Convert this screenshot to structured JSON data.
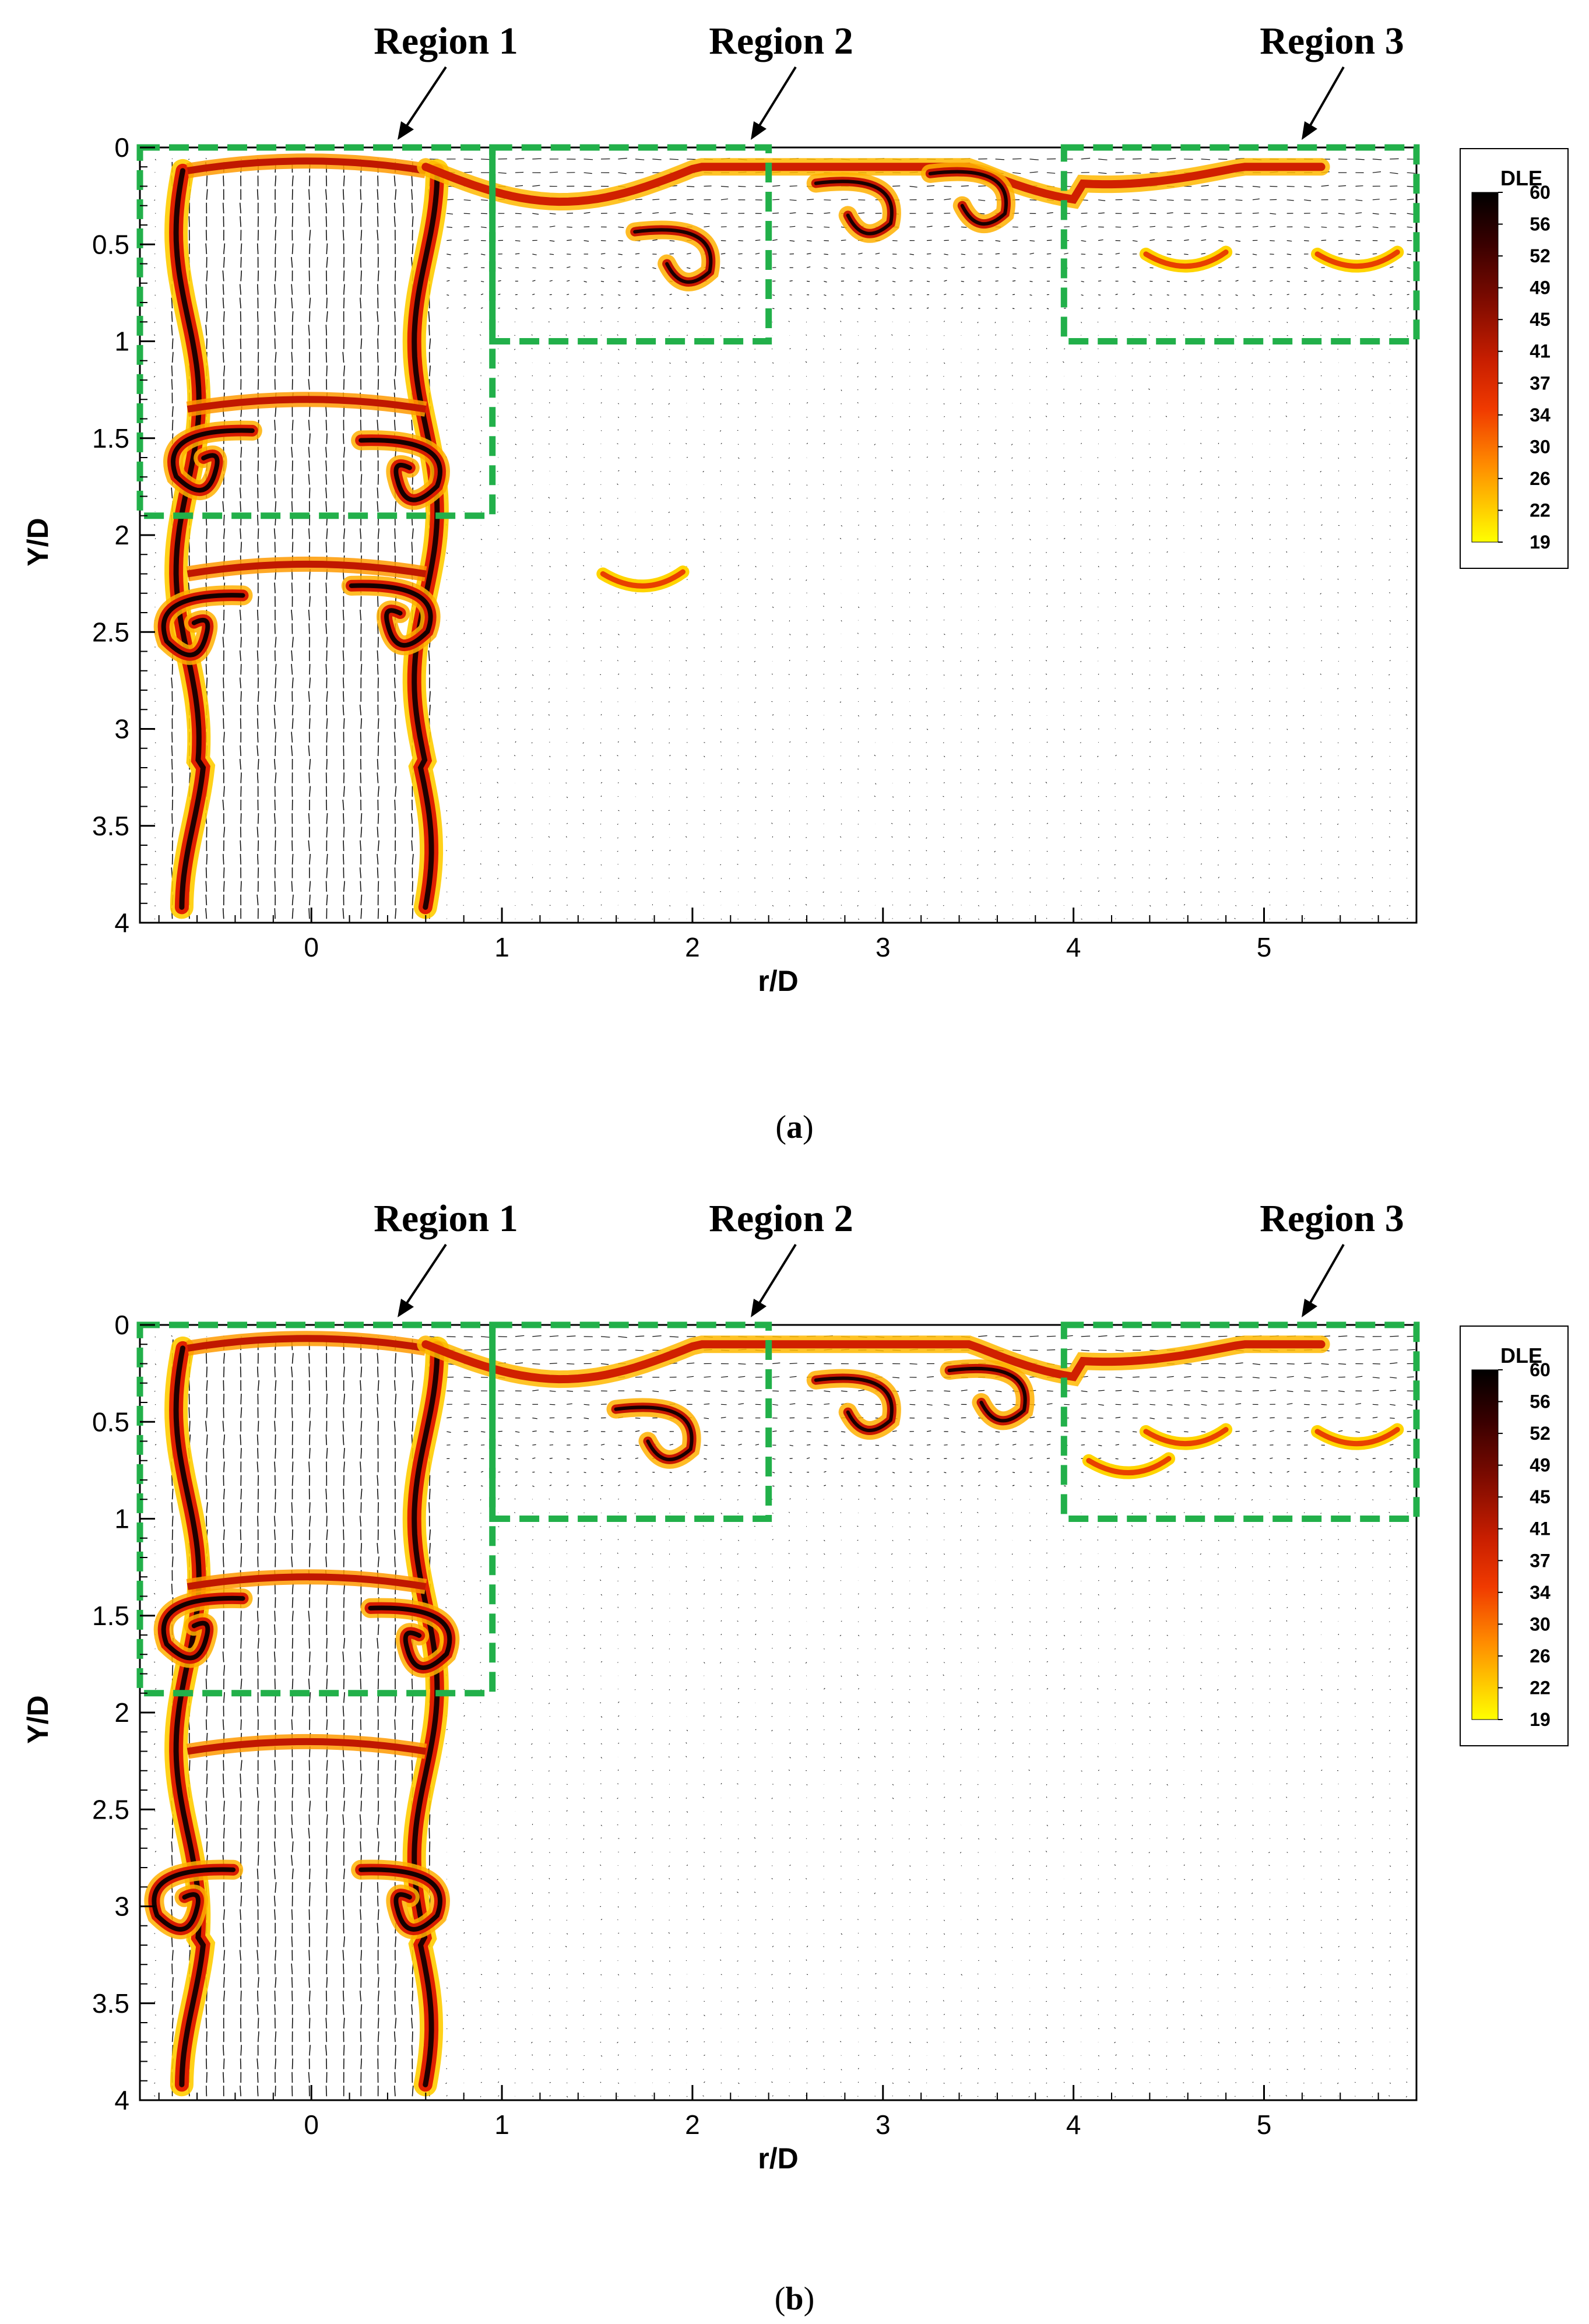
{
  "chart_data": [
    {
      "type": "heatmap",
      "panel": "a",
      "caption_open": "(",
      "caption_letter": "a",
      "caption_close": ")",
      "xlabel": "r/D",
      "ylabel": "Y/D",
      "xlim": [
        -0.9,
        5.8
      ],
      "ylim": [
        4,
        0
      ],
      "x_ticks": [
        0,
        1,
        2,
        3,
        4,
        5
      ],
      "y_ticks": [
        0,
        0.5,
        1,
        1.5,
        2,
        2.5,
        3,
        3.5,
        4
      ],
      "legend": {
        "title": "DLE",
        "levels": [
          60,
          56,
          52,
          49,
          45,
          41,
          37,
          34,
          30,
          26,
          22,
          19
        ],
        "placement": "right"
      },
      "regions": [
        {
          "label": "Region 1",
          "r": [
            -0.9,
            0.95
          ],
          "y": [
            0,
            1.9
          ]
        },
        {
          "label": "Region 2",
          "r": [
            0.95,
            2.4
          ],
          "y": [
            0,
            1.0
          ]
        },
        {
          "label": "Region 3",
          "r": [
            3.95,
            5.8
          ],
          "y": [
            0,
            1.0
          ]
        }
      ],
      "features": {
        "jet_edge_r": [
          -0.65,
          0.6
        ],
        "roll_up_left": [
          {
            "r": -0.6,
            "y": 2.5
          },
          {
            "r": -0.55,
            "y": 1.65
          }
        ],
        "roll_up_right": [
          {
            "r": 0.45,
            "y": 2.45
          },
          {
            "r": 0.5,
            "y": 1.7
          }
        ],
        "wall_vortices": [
          {
            "r": 1.95,
            "y": 0.6
          },
          {
            "r": 2.9,
            "y": 0.35
          },
          {
            "r": 3.5,
            "y": 0.3
          }
        ],
        "small_blobs": [
          {
            "r": 4.6,
            "y": 0.6
          },
          {
            "r": 1.75,
            "y": 2.25
          },
          {
            "r": 5.5,
            "y": 0.6
          }
        ]
      }
    },
    {
      "type": "heatmap",
      "panel": "b",
      "caption_open": "(",
      "caption_letter": "b",
      "caption_close": ")",
      "xlabel": "r/D",
      "ylabel": "Y/D",
      "xlim": [
        -0.9,
        5.8
      ],
      "ylim": [
        4,
        0
      ],
      "x_ticks": [
        0,
        1,
        2,
        3,
        4,
        5
      ],
      "y_ticks": [
        0,
        0.5,
        1,
        1.5,
        2,
        2.5,
        3,
        3.5,
        4
      ],
      "legend": {
        "title": "DLE",
        "levels": [
          60,
          56,
          52,
          49,
          45,
          41,
          37,
          34,
          30,
          26,
          22,
          19
        ],
        "placement": "right"
      },
      "regions": [
        {
          "label": "Region 1",
          "r": [
            -0.9,
            0.95
          ],
          "y": [
            0,
            1.9
          ]
        },
        {
          "label": "Region 2",
          "r": [
            0.95,
            2.4
          ],
          "y": [
            0,
            1.0
          ]
        },
        {
          "label": "Region 3",
          "r": [
            3.95,
            5.8
          ],
          "y": [
            0,
            1.0
          ]
        }
      ],
      "features": {
        "jet_edge_r": [
          -0.65,
          0.6
        ],
        "roll_up_left": [
          {
            "r": -0.65,
            "y": 3.0
          },
          {
            "r": -0.6,
            "y": 1.6
          }
        ],
        "roll_up_right": [
          {
            "r": 0.5,
            "y": 3.0
          },
          {
            "r": 0.55,
            "y": 1.65
          }
        ],
        "wall_vortices": [
          {
            "r": 1.85,
            "y": 0.6
          },
          {
            "r": 2.9,
            "y": 0.45
          },
          {
            "r": 3.6,
            "y": 0.4
          }
        ],
        "small_blobs": [
          {
            "r": 4.6,
            "y": 0.6
          },
          {
            "r": 5.5,
            "y": 0.6
          },
          {
            "r": 4.3,
            "y": 0.75
          }
        ]
      }
    }
  ]
}
